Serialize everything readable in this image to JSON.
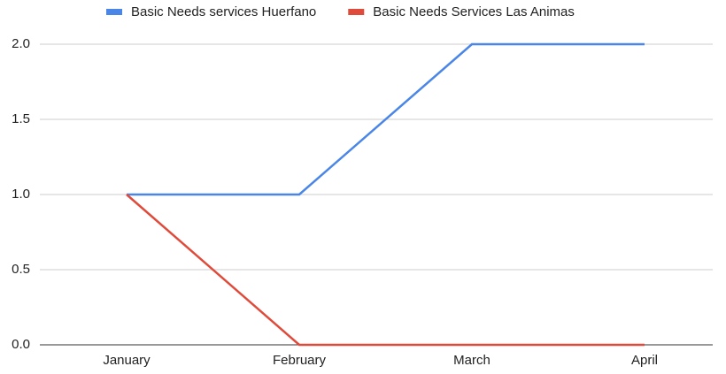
{
  "chart_data": {
    "type": "line",
    "categories": [
      "January",
      "February",
      "March",
      "April"
    ],
    "series": [
      {
        "name": "Basic Needs services Huerfano",
        "color": "#4a86e8",
        "values": [
          1,
          1,
          2,
          2
        ]
      },
      {
        "name": "Basic Needs Services Las Animas",
        "color": "#e04a3a",
        "values": [
          1,
          0,
          0,
          0
        ]
      }
    ],
    "ylim": [
      0,
      2
    ],
    "yticks": [
      {
        "value": 0,
        "label": "0.0"
      },
      0.5,
      {
        "value": 1,
        "label": "1.0"
      },
      1.5,
      {
        "value": 2,
        "label": "2.0"
      }
    ],
    "grid": true,
    "legend": "top"
  }
}
